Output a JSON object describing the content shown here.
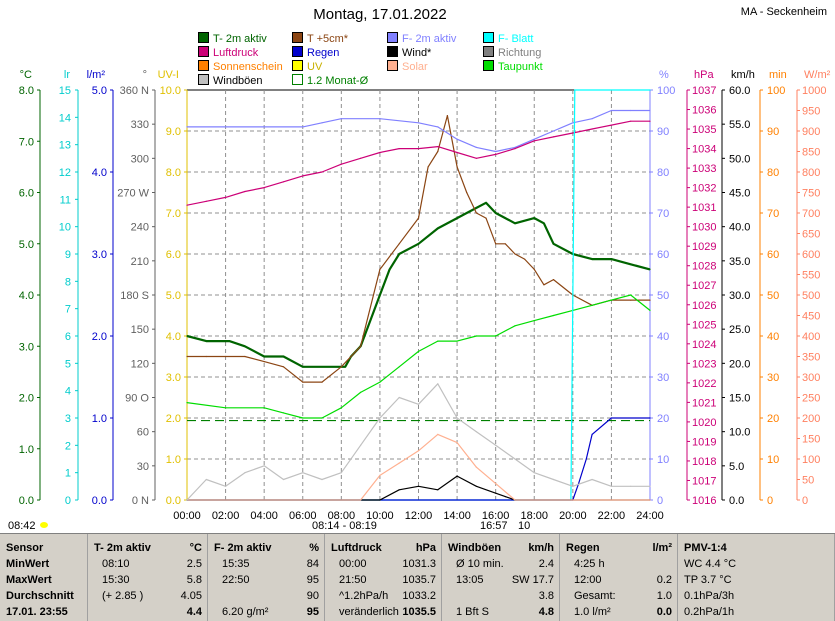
{
  "title": "Montag, 17.01.2022",
  "station": "MA - Seckenheim",
  "legend": [
    {
      "label": "T- 2m aktiv",
      "color": "#006400"
    },
    {
      "label": "T +5cm*",
      "color": "#8b4513"
    },
    {
      "label": "F- 2m aktiv",
      "color": "#8080ff"
    },
    {
      "label": "F- Blatt",
      "color": "#00ffff"
    },
    {
      "label": "Luftdruck",
      "color": "#cc0077"
    },
    {
      "label": "Regen",
      "color": "#0000cc"
    },
    {
      "label": "Wind*",
      "color": "#000000"
    },
    {
      "label": "Richtung",
      "color": "#808080"
    },
    {
      "label": "Sonnenschein",
      "color": "#ff8000"
    },
    {
      "label": "UV",
      "color": "#ffff00"
    },
    {
      "label": "Solar",
      "color": "#ffb090"
    },
    {
      "label": "Taupunkt",
      "color": "#00dd00"
    },
    {
      "label": "Windböen",
      "color": "#c0c0c0"
    },
    {
      "label": "1.2 Monat-Ø",
      "color": "#008000"
    }
  ],
  "axes": {
    "temp": {
      "unit": "°C",
      "color": "#006400",
      "ticks": [
        "8.0",
        "7.0",
        "6.0",
        "5.0",
        "4.0",
        "3.0",
        "2.0",
        "1.0",
        "0.0"
      ]
    },
    "lr": {
      "unit": "lr",
      "color": "#00cccc",
      "ticks": [
        "15",
        "14",
        "13",
        "12",
        "11",
        "10",
        "9",
        "8",
        "7",
        "6",
        "5",
        "4",
        "3",
        "2",
        "1",
        "0"
      ]
    },
    "rain": {
      "unit": "l/m²",
      "color": "#0000cc",
      "ticks": [
        "5.0",
        "4.0",
        "3.0",
        "2.0",
        "1.0",
        "0.0"
      ]
    },
    "dir": {
      "unit": "°",
      "color": "#606060",
      "ticks": [
        "360 N",
        "330",
        "300",
        "270 W",
        "240",
        "210",
        "180 S",
        "150",
        "120",
        "90 O",
        "60",
        "30",
        "0 N"
      ]
    },
    "uv": {
      "unit": "UV-I",
      "color": "#e0c000",
      "ticks": [
        "10.0",
        "9.0",
        "8.0",
        "7.0",
        "6.0",
        "5.0",
        "4.0",
        "3.0",
        "2.0",
        "1.0",
        "0.0"
      ]
    },
    "hum": {
      "unit": "%",
      "color": "#8080ff",
      "ticks": [
        "100",
        "90",
        "80",
        "70",
        "60",
        "50",
        "40",
        "30",
        "20",
        "10",
        "0"
      ]
    },
    "press": {
      "unit": "hPa",
      "color": "#cc0077",
      "ticks": [
        "1037",
        "1036",
        "1035",
        "1034",
        "1033",
        "1032",
        "1031",
        "1030",
        "1029",
        "1028",
        "1027",
        "1026",
        "1025",
        "1024",
        "1023",
        "1022",
        "1021",
        "1020",
        "1019",
        "1018",
        "1017",
        "1016"
      ]
    },
    "wind": {
      "unit": "km/h",
      "color": "#000000",
      "ticks": [
        "60.0",
        "55.0",
        "50.0",
        "45.0",
        "40.0",
        "35.0",
        "30.0",
        "25.0",
        "20.0",
        "15.0",
        "10.0",
        "5.0",
        "0.0"
      ]
    },
    "min": {
      "unit": "min",
      "color": "#ff8000",
      "ticks": [
        "100",
        "90",
        "80",
        "70",
        "60",
        "50",
        "40",
        "30",
        "20",
        "10",
        "0"
      ]
    },
    "solar": {
      "unit": "W/m²",
      "color": "#ff8060",
      "ticks": [
        "1000",
        "950",
        "900",
        "850",
        "800",
        "750",
        "700",
        "650",
        "600",
        "550",
        "500",
        "450",
        "400",
        "350",
        "300",
        "250",
        "200",
        "150",
        "100",
        "50",
        "0"
      ]
    },
    "x": [
      "00:00",
      "02:00",
      "04:00",
      "06:00",
      "08:00",
      "10:00",
      "12:00",
      "14:00",
      "16:00",
      "18:00",
      "20:00",
      "22:00",
      "24:00"
    ]
  },
  "annotations": {
    "sunrise": "08:42",
    "daylight": "08:14 - 08:19",
    "sunset": "16:57",
    "sunset_min": "10"
  },
  "chart_data": {
    "type": "line",
    "x_range": [
      0,
      24
    ],
    "series": [
      {
        "name": "T- 2m aktiv",
        "axis": "temp",
        "color": "#006400",
        "points": [
          [
            0,
            3.2
          ],
          [
            1,
            3.1
          ],
          [
            2.2,
            3.1
          ],
          [
            3,
            3.0
          ],
          [
            4,
            2.8
          ],
          [
            5,
            2.8
          ],
          [
            6,
            2.6
          ],
          [
            7,
            2.6
          ],
          [
            7.7,
            2.6
          ],
          [
            8.2,
            2.6
          ],
          [
            8.5,
            2.8
          ],
          [
            9,
            3.0
          ],
          [
            9.5,
            3.5
          ],
          [
            10,
            4.0
          ],
          [
            10.5,
            4.5
          ],
          [
            11,
            4.8
          ],
          [
            12,
            5.0
          ],
          [
            13,
            5.3
          ],
          [
            14,
            5.5
          ],
          [
            14.5,
            5.6
          ],
          [
            15,
            5.7
          ],
          [
            15.5,
            5.8
          ],
          [
            16,
            5.6
          ],
          [
            16.5,
            5.5
          ],
          [
            17,
            5.4
          ],
          [
            18,
            5.5
          ],
          [
            18.5,
            5.4
          ],
          [
            19,
            5.0
          ],
          [
            20,
            4.8
          ],
          [
            21,
            4.7
          ],
          [
            22,
            4.7
          ],
          [
            23,
            4.6
          ],
          [
            24,
            4.5
          ]
        ]
      },
      {
        "name": "T +5cm*",
        "axis": "temp",
        "color": "#8b4513",
        "points": [
          [
            0,
            2.8
          ],
          [
            1,
            2.8
          ],
          [
            2,
            2.8
          ],
          [
            3,
            2.8
          ],
          [
            4,
            2.7
          ],
          [
            5,
            2.6
          ],
          [
            6,
            2.3
          ],
          [
            7,
            2.3
          ],
          [
            8,
            2.6
          ],
          [
            9,
            3.0
          ],
          [
            10,
            4.5
          ],
          [
            11,
            5.0
          ],
          [
            12,
            5.5
          ],
          [
            12.5,
            6.5
          ],
          [
            13,
            6.8
          ],
          [
            13.5,
            7.5
          ],
          [
            14,
            6.5
          ],
          [
            14.5,
            6.0
          ],
          [
            15,
            5.6
          ],
          [
            15.5,
            5.5
          ],
          [
            16,
            5.0
          ],
          [
            16.5,
            5.0
          ],
          [
            17,
            4.8
          ],
          [
            17.5,
            4.7
          ],
          [
            18,
            4.5
          ],
          [
            18.5,
            4.2
          ],
          [
            19,
            4.3
          ],
          [
            20,
            4.0
          ],
          [
            21,
            3.8
          ],
          [
            22,
            3.9
          ],
          [
            23,
            3.9
          ],
          [
            24,
            3.9
          ]
        ]
      },
      {
        "name": "F- 2m aktiv",
        "axis": "hum",
        "color": "#8080ff",
        "points": [
          [
            0,
            91
          ],
          [
            4,
            91
          ],
          [
            6,
            91
          ],
          [
            7,
            92
          ],
          [
            8,
            93
          ],
          [
            10,
            93
          ],
          [
            12,
            92
          ],
          [
            13,
            91
          ],
          [
            14,
            88
          ],
          [
            15,
            86
          ],
          [
            16,
            85
          ],
          [
            17,
            86
          ],
          [
            18,
            88
          ],
          [
            19,
            90
          ],
          [
            20,
            92
          ],
          [
            21,
            93
          ],
          [
            22,
            95
          ],
          [
            23,
            95
          ],
          [
            24,
            95
          ]
        ]
      },
      {
        "name": "Luftdruck",
        "axis": "press",
        "color": "#cc0077",
        "points": [
          [
            0,
            1031.1
          ],
          [
            1,
            1031.3
          ],
          [
            2,
            1031.5
          ],
          [
            3,
            1031.8
          ],
          [
            4,
            1032.0
          ],
          [
            5,
            1032.3
          ],
          [
            6,
            1032.6
          ],
          [
            7,
            1032.8
          ],
          [
            8,
            1033.2
          ],
          [
            9,
            1033.5
          ],
          [
            10,
            1033.8
          ],
          [
            11,
            1034.0
          ],
          [
            12,
            1034.0
          ],
          [
            13,
            1034.1
          ],
          [
            14,
            1033.8
          ],
          [
            15,
            1033.5
          ],
          [
            16,
            1033.7
          ],
          [
            17,
            1034.0
          ],
          [
            18,
            1034.4
          ],
          [
            19,
            1034.6
          ],
          [
            20,
            1034.8
          ],
          [
            21,
            1035.0
          ],
          [
            22,
            1035.2
          ],
          [
            23,
            1035.4
          ],
          [
            24,
            1035.4
          ]
        ]
      },
      {
        "name": "Taupunkt",
        "axis": "temp",
        "color": "#00dd00",
        "points": [
          [
            0,
            1.9
          ],
          [
            2,
            1.8
          ],
          [
            4,
            1.8
          ],
          [
            5,
            1.7
          ],
          [
            6,
            1.6
          ],
          [
            7,
            1.6
          ],
          [
            8,
            1.8
          ],
          [
            9,
            2.1
          ],
          [
            10,
            2.3
          ],
          [
            11,
            2.6
          ],
          [
            12,
            2.9
          ],
          [
            13,
            3.1
          ],
          [
            14,
            3.1
          ],
          [
            15,
            3.2
          ],
          [
            16,
            3.2
          ],
          [
            17,
            3.4
          ],
          [
            18,
            3.5
          ],
          [
            19,
            3.6
          ],
          [
            20,
            3.7
          ],
          [
            21,
            3.8
          ],
          [
            22,
            3.9
          ],
          [
            23,
            4.0
          ],
          [
            24,
            3.7
          ]
        ]
      },
      {
        "name": "F- Blatt",
        "axis": "lr",
        "color": "#00ffff",
        "points": [
          [
            0,
            0
          ],
          [
            19.9,
            0
          ],
          [
            20.1,
            15
          ],
          [
            24,
            15
          ]
        ]
      },
      {
        "name": "Regen",
        "axis": "rain",
        "color": "#0000cc",
        "points": [
          [
            0,
            0
          ],
          [
            20,
            0
          ],
          [
            20.3,
            0.2
          ],
          [
            20.7,
            0.5
          ],
          [
            21,
            0.8
          ],
          [
            22,
            1.0
          ],
          [
            24,
            1.0
          ]
        ]
      },
      {
        "name": "Wind*",
        "axis": "wind",
        "color": "#000000",
        "points": [
          [
            0,
            0
          ],
          [
            10,
            0
          ],
          [
            11,
            1.5
          ],
          [
            12,
            2.0
          ],
          [
            13,
            1.5
          ],
          [
            14,
            3.5
          ],
          [
            15,
            2.0
          ],
          [
            16,
            1.0
          ],
          [
            16.5,
            0.5
          ],
          [
            17,
            0
          ],
          [
            24,
            0
          ]
        ]
      },
      {
        "name": "Solar",
        "axis": "solar",
        "color": "#ffb090",
        "points": [
          [
            0,
            0
          ],
          [
            9,
            0
          ],
          [
            10,
            60
          ],
          [
            11,
            90
          ],
          [
            12,
            120
          ],
          [
            13,
            160
          ],
          [
            14,
            140
          ],
          [
            15,
            80
          ],
          [
            16,
            40
          ],
          [
            17,
            0
          ],
          [
            24,
            0
          ]
        ]
      },
      {
        "name": "Windböen",
        "axis": "wind",
        "color": "#c0c0c0",
        "points": [
          [
            0,
            0
          ],
          [
            1,
            3
          ],
          [
            2,
            2
          ],
          [
            3,
            4
          ],
          [
            4,
            5
          ],
          [
            5,
            3
          ],
          [
            6,
            4
          ],
          [
            7,
            3
          ],
          [
            8,
            4
          ],
          [
            9,
            8
          ],
          [
            10,
            12
          ],
          [
            11,
            15
          ],
          [
            12,
            14
          ],
          [
            13,
            17
          ],
          [
            14,
            12
          ],
          [
            15,
            10
          ],
          [
            16,
            8
          ],
          [
            17,
            6
          ],
          [
            18,
            4
          ],
          [
            19,
            3
          ],
          [
            20,
            2
          ],
          [
            21,
            3
          ],
          [
            22,
            2
          ],
          [
            23,
            2
          ],
          [
            24,
            2
          ]
        ]
      }
    ],
    "monthly_avg_temp": 1.55
  },
  "stats": {
    "cols": [
      {
        "header": "Sensor",
        "unit": "",
        "rows": [
          "MinWert",
          "MaxWert",
          "Durchschnitt",
          "17.01. 23:55"
        ]
      },
      {
        "header": "T- 2m aktiv",
        "unit": "°C",
        "rows": [
          [
            "08:10",
            "2.5"
          ],
          [
            "15:30",
            "5.8"
          ],
          [
            "(+ 2.85 )",
            "4.05"
          ],
          [
            "",
            "4.4"
          ]
        ]
      },
      {
        "header": "F- 2m aktiv",
        "unit": "%",
        "rows": [
          [
            "15:35",
            "84"
          ],
          [
            "22:50",
            "95"
          ],
          [
            "",
            "90"
          ],
          [
            "6.20 g/m²",
            "95"
          ]
        ]
      },
      {
        "header": "Luftdruck",
        "unit": "hPa",
        "rows": [
          [
            "00:00",
            "1031.3"
          ],
          [
            "21:50",
            "1035.7"
          ],
          [
            "^1.2hPa/h",
            "1033.2"
          ],
          [
            "veränderlich",
            "1035.5"
          ]
        ]
      },
      {
        "header": "Windböen",
        "unit": "km/h",
        "rows": [
          [
            "Ø 10 min.",
            "2.4"
          ],
          [
            "13:05",
            "SW 17.7"
          ],
          [
            "",
            "3.8"
          ],
          [
            "1 Bft S",
            "4.8"
          ]
        ]
      },
      {
        "header": "Regen",
        "unit": "l/m²",
        "rows": [
          [
            "4:25 h",
            ""
          ],
          [
            "12:00",
            "0.2"
          ],
          [
            "Gesamt:",
            "1.0"
          ],
          [
            "1.0 l/m²",
            "0.0"
          ]
        ]
      },
      {
        "header": "PMV-1:4",
        "unit": "",
        "rows": [
          "WC 4.4 °C",
          "TP 3.7 °C",
          "0.1hPa/3h",
          "0.2hPa/1h"
        ]
      }
    ]
  }
}
